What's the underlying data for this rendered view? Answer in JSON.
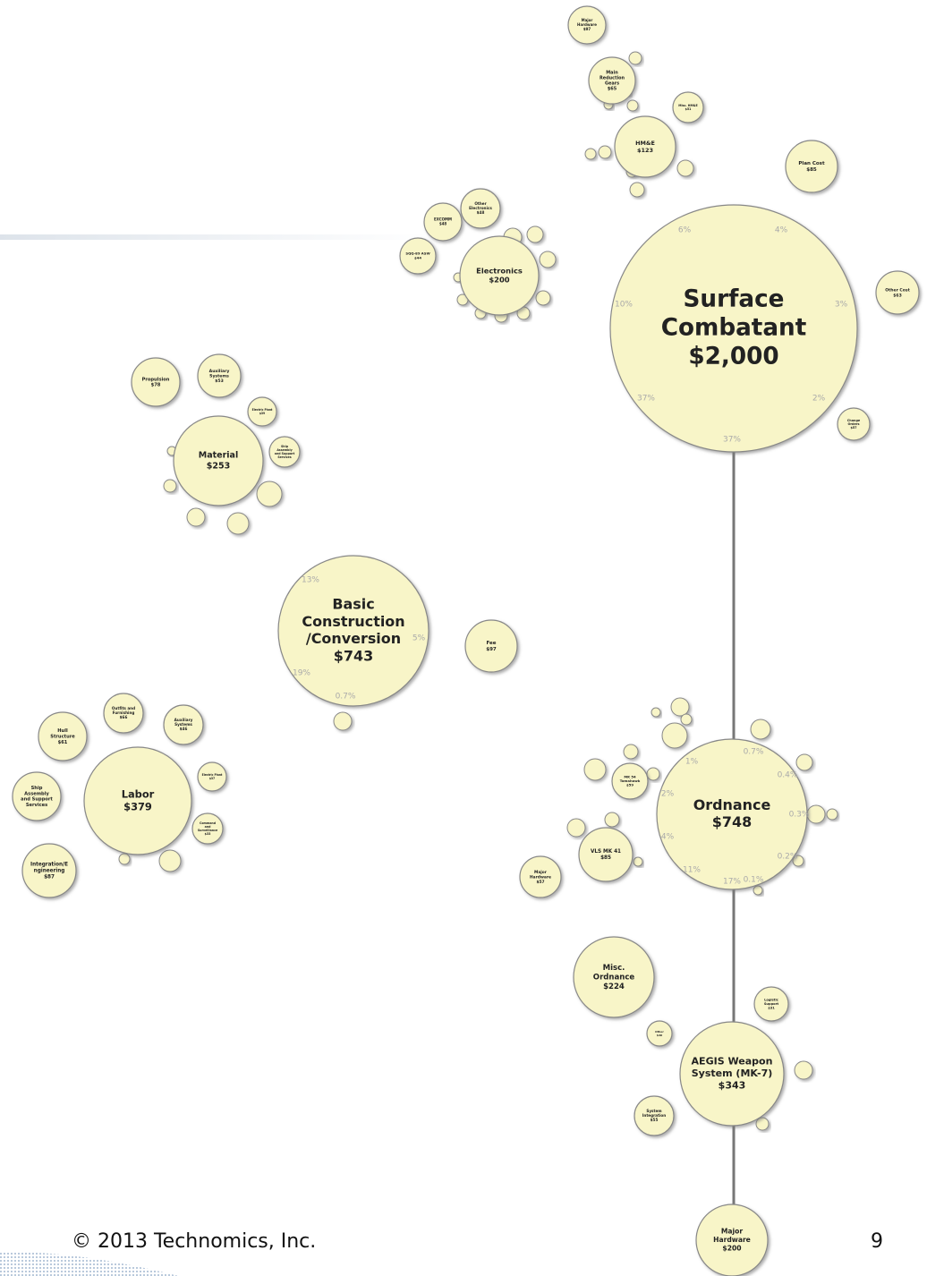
{
  "nodes": [
    {
      "lines": [
        "Surface",
        "Combatant",
        "$2,000"
      ]
    },
    {
      "lines": [
        "Ordnance",
        "$748"
      ]
    },
    {
      "lines": [
        "AEGIS Weapon",
        "System (MK-7)",
        "$343"
      ]
    },
    {
      "lines": [
        "Major",
        "Hardware",
        "$200"
      ]
    },
    {
      "lines": [
        "Misc.",
        "Ordnance",
        "$224"
      ]
    },
    {
      "lines": [
        "Basic",
        "Construction",
        "/Conversion",
        "$743"
      ]
    },
    {
      "lines": [
        "Fee",
        "$97"
      ]
    },
    {
      "lines": [
        "Labor",
        "$379"
      ]
    },
    {
      "lines": [
        "Material",
        "$253"
      ]
    },
    {
      "lines": [
        "Electronics",
        "$200"
      ]
    },
    {
      "lines": [
        "HM&E",
        "$123"
      ]
    },
    {
      "lines": [
        "Plan Cost",
        "$85"
      ]
    },
    {
      "lines": [
        "Other Cost",
        "$63"
      ]
    },
    {
      "lines": [
        "Change",
        "Orders",
        "$57"
      ]
    },
    {
      "lines": [
        "Main",
        "Reduction",
        "Gears",
        "$65"
      ]
    },
    {
      "lines": [
        "Major",
        "Hardware",
        "$97"
      ]
    },
    {
      "lines": [
        "Misc. HM&E",
        "$51"
      ]
    },
    {
      "lines": [
        "EXCOMM",
        "$48"
      ]
    },
    {
      "lines": [
        "Other",
        "Electronics",
        "$48"
      ]
    },
    {
      "lines": [
        "SQQ-89 ASW",
        "$44"
      ]
    },
    {
      "lines": [
        "Propulsion",
        "$78"
      ]
    },
    {
      "lines": [
        "Auxiliary",
        "Systems",
        "$53"
      ]
    },
    {
      "lines": [
        "Electric Plant",
        "$39"
      ]
    },
    {
      "lines": [
        "Ship",
        "Assembly",
        "and Support",
        "Services"
      ]
    },
    {
      "lines": [
        "Hull",
        "Structure",
        "$61"
      ]
    },
    {
      "lines": [
        "Outfits and",
        "Furnishing",
        "$66"
      ]
    },
    {
      "lines": [
        "Auxiliary",
        "Systems",
        "$46"
      ]
    },
    {
      "lines": [
        "Electric Plant",
        "$37"
      ]
    },
    {
      "lines": [
        "Command",
        "and",
        "Surveillance",
        "$33"
      ]
    },
    {
      "lines": [
        "Ship",
        "Assembly",
        "and Support",
        "Services"
      ]
    },
    {
      "lines": [
        "Integration/E",
        "ngineering",
        "$87"
      ]
    },
    {
      "lines": [
        "Major",
        "Hardware",
        "$57"
      ]
    },
    {
      "lines": [
        "VLS MK 41",
        "$85"
      ]
    },
    {
      "lines": [
        "MK 54",
        "Tomahawk",
        "$59"
      ]
    },
    {
      "lines": [
        "Logistic",
        "Support",
        "$31"
      ]
    },
    {
      "lines": [
        "System",
        "Integration",
        "$55"
      ]
    },
    {
      "lines": [
        "Other",
        "$40"
      ]
    }
  ],
  "percents": [
    "6%",
    "4%",
    "10%",
    "3%",
    "37%",
    "2%",
    "37%",
    "1%",
    "0.7%",
    "0.4%",
    "2%",
    "0.3%",
    "4%",
    "0.2%",
    "11%",
    "17%",
    "0.1%",
    "13%",
    "5%",
    "19%",
    "0.7%"
  ],
  "footer": {
    "copyright": "© 2013 Technomics, Inc.",
    "page": "9"
  }
}
